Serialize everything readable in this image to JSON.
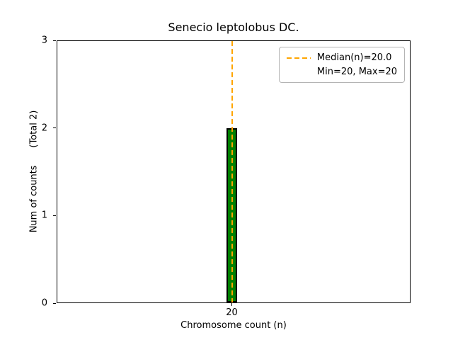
{
  "chart_data": {
    "type": "bar",
    "title": "Senecio leptolobus DC.",
    "xlabel": "Chromosome count (n)",
    "ylabel": "Num of counts      (Total 2)",
    "categories": [
      20
    ],
    "values": [
      2
    ],
    "total_counts": 2,
    "ylim": [
      0,
      3
    ],
    "yticks": [
      0,
      1,
      2,
      3
    ],
    "xticks": [
      "20"
    ],
    "bar_color": "#008000",
    "bar_edgecolor": "#000000",
    "median_line": {
      "x": 20,
      "style": "dashed",
      "color": "#FFA500"
    },
    "legend": {
      "position": "upper right",
      "entries": [
        {
          "label": "Median(n)=20.0",
          "marker": "dashed-line",
          "color": "#FFA500"
        },
        {
          "label": "Min=20, Max=20",
          "marker": "none"
        }
      ]
    },
    "grid": false
  }
}
